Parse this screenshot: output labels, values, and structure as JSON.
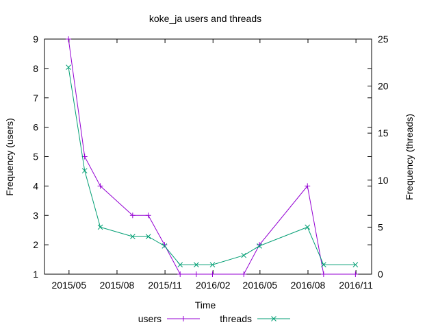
{
  "chart_data": {
    "type": "line",
    "title": "koke_ja users and threads",
    "xlabel": "Time",
    "ylabel_left": "Frequency (users)",
    "ylabel_right": "Frequency (threads)",
    "x_tick_labels": [
      "2015/05",
      "2015/08",
      "2015/11",
      "2016/02",
      "2016/05",
      "2016/08",
      "2016/11"
    ],
    "x_ticks": [
      "2015-05-01",
      "2015-08-01",
      "2015-11-01",
      "2016-02-01",
      "2016-05-01",
      "2016-08-01",
      "2016-11-01"
    ],
    "x_range": [
      "2015-03-15",
      "2016-12-01"
    ],
    "ylim_left": [
      1,
      9
    ],
    "ylim_right": [
      0,
      25
    ],
    "yticks_left": [
      1,
      2,
      3,
      4,
      5,
      6,
      7,
      8,
      9
    ],
    "yticks_right": [
      0,
      5,
      10,
      15,
      20,
      25
    ],
    "grid": false,
    "legend_position": "bottom",
    "series": [
      {
        "name": "users",
        "axis": "left",
        "color": "#9400d3",
        "marker": "plus",
        "points": [
          {
            "x": "2015-04-30",
            "y": 9
          },
          {
            "x": "2015-05-31",
            "y": 5
          },
          {
            "x": "2015-06-30",
            "y": 4
          },
          {
            "x": "2015-08-31",
            "y": 3
          },
          {
            "x": "2015-09-30",
            "y": 3
          },
          {
            "x": "2015-10-31",
            "y": 2
          },
          {
            "x": "2015-11-30",
            "y": 1
          },
          {
            "x": "2015-12-31",
            "y": 1
          },
          {
            "x": "2016-01-31",
            "y": 1
          },
          {
            "x": "2016-03-31",
            "y": 1
          },
          {
            "x": "2016-04-30",
            "y": 2
          },
          {
            "x": "2016-07-31",
            "y": 4
          },
          {
            "x": "2016-08-31",
            "y": 1
          },
          {
            "x": "2016-10-31",
            "y": 1
          }
        ]
      },
      {
        "name": "threads",
        "axis": "right",
        "color": "#009e73",
        "marker": "cross",
        "points": [
          {
            "x": "2015-04-30",
            "y": 22
          },
          {
            "x": "2015-05-31",
            "y": 11
          },
          {
            "x": "2015-06-30",
            "y": 5
          },
          {
            "x": "2015-08-31",
            "y": 4
          },
          {
            "x": "2015-09-30",
            "y": 4
          },
          {
            "x": "2015-10-31",
            "y": 3
          },
          {
            "x": "2015-11-30",
            "y": 1
          },
          {
            "x": "2015-12-31",
            "y": 1
          },
          {
            "x": "2016-01-31",
            "y": 1
          },
          {
            "x": "2016-03-31",
            "y": 2
          },
          {
            "x": "2016-04-30",
            "y": 3
          },
          {
            "x": "2016-07-31",
            "y": 5
          },
          {
            "x": "2016-08-31",
            "y": 1
          },
          {
            "x": "2016-10-31",
            "y": 1
          }
        ]
      }
    ]
  }
}
